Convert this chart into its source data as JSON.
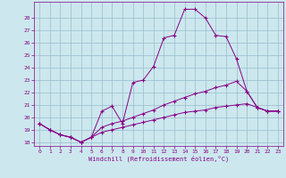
{
  "xlabel": "Windchill (Refroidissement éolien,°C)",
  "xlim": [
    -0.5,
    23.5
  ],
  "ylim": [
    17.7,
    29.3
  ],
  "yticks": [
    18,
    19,
    20,
    21,
    22,
    23,
    24,
    25,
    26,
    27,
    28
  ],
  "xticks": [
    0,
    1,
    2,
    3,
    4,
    5,
    6,
    7,
    8,
    9,
    10,
    11,
    12,
    13,
    14,
    15,
    16,
    17,
    18,
    19,
    20,
    21,
    22,
    23
  ],
  "background_color": "#cce8ee",
  "line_color": "#880088",
  "grid_color": "#99bbcc",
  "line1_x": [
    0,
    1,
    2,
    3,
    4,
    5,
    6,
    7,
    8,
    9,
    10,
    11,
    12,
    13,
    14,
    15,
    16,
    17,
    18,
    19,
    20,
    21,
    22,
    23
  ],
  "line1_y": [
    19.5,
    19.0,
    18.6,
    18.4,
    18.0,
    18.4,
    20.5,
    20.9,
    19.5,
    22.8,
    23.0,
    24.1,
    26.4,
    26.6,
    28.7,
    28.7,
    28.0,
    26.6,
    26.5,
    24.7,
    22.1,
    20.8,
    20.5,
    20.5
  ],
  "line2_x": [
    0,
    1,
    2,
    3,
    4,
    5,
    6,
    7,
    8,
    9,
    10,
    11,
    12,
    13,
    14,
    15,
    16,
    17,
    18,
    19,
    20,
    21,
    22,
    23
  ],
  "line2_y": [
    19.5,
    19.0,
    18.6,
    18.4,
    18.0,
    18.4,
    19.2,
    19.5,
    19.7,
    20.0,
    20.3,
    20.6,
    21.0,
    21.3,
    21.6,
    21.9,
    22.1,
    22.4,
    22.6,
    22.9,
    22.1,
    20.8,
    20.5,
    20.5
  ],
  "line3_x": [
    0,
    1,
    2,
    3,
    4,
    5,
    6,
    7,
    8,
    9,
    10,
    11,
    12,
    13,
    14,
    15,
    16,
    17,
    18,
    19,
    20,
    21,
    22,
    23
  ],
  "line3_y": [
    19.5,
    19.0,
    18.6,
    18.4,
    18.0,
    18.4,
    18.8,
    19.0,
    19.2,
    19.4,
    19.6,
    19.8,
    20.0,
    20.2,
    20.4,
    20.5,
    20.6,
    20.8,
    20.9,
    21.0,
    21.1,
    20.8,
    20.5,
    20.5
  ]
}
